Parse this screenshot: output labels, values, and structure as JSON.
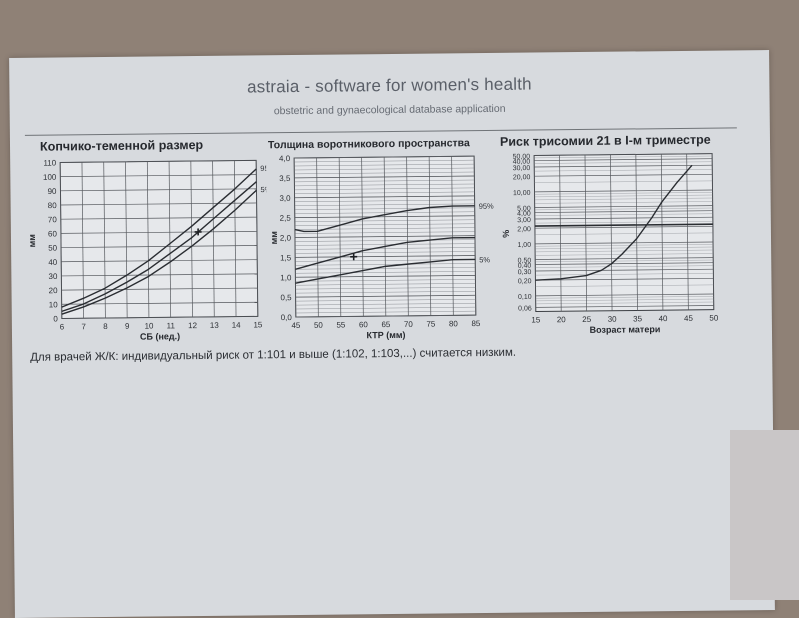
{
  "header": {
    "title": "astraia - software for women's health",
    "subtitle": "obstetric and gynaecological database application"
  },
  "footer_note": "Для врачей Ж/К: индивидуальный риск от 1:101 и выше (1:102, 1:103,...) считается низким.",
  "chart_data": [
    {
      "type": "line",
      "title": "Копчико-теменной размер",
      "xlabel": "СБ (нед.)",
      "ylabel": "мм",
      "xlim": [
        6,
        15
      ],
      "ylim": [
        0,
        110
      ],
      "x_ticks": [
        6,
        7,
        8,
        9,
        10,
        11,
        12,
        13,
        14,
        15
      ],
      "y_ticks": [
        0,
        10,
        20,
        30,
        40,
        50,
        60,
        70,
        80,
        90,
        100,
        110
      ],
      "grid": true,
      "series": [
        {
          "name": "95%",
          "x": [
            6,
            7,
            8,
            9,
            10,
            11,
            12,
            13,
            14,
            15
          ],
          "values": [
            8,
            14,
            21,
            30,
            40,
            52,
            64,
            77,
            90,
            104
          ]
        },
        {
          "name": "",
          "x": [
            6,
            7,
            8,
            9,
            10,
            11,
            12,
            13,
            14,
            15
          ],
          "values": [
            5,
            10,
            17,
            25,
            34,
            45,
            56,
            69,
            82,
            95
          ]
        },
        {
          "name": "5%",
          "x": [
            6,
            7,
            8,
            9,
            10,
            11,
            12,
            13,
            14,
            15
          ],
          "values": [
            3,
            8,
            14,
            21,
            29,
            39,
            50,
            62,
            75,
            89
          ]
        }
      ],
      "marker": {
        "x": 12.3,
        "y": 60
      }
    },
    {
      "type": "line",
      "title": "Толщина воротникового пространства",
      "xlabel": "КТР (мм)",
      "ylabel": "мм",
      "xlim": [
        45,
        85
      ],
      "ylim": [
        0,
        4
      ],
      "x_ticks": [
        45,
        50,
        55,
        60,
        65,
        70,
        75,
        80,
        85
      ],
      "y_ticks": [
        0.0,
        0.5,
        1.0,
        1.5,
        2.0,
        2.5,
        3.0,
        3.5,
        4.0
      ],
      "y_tick_labels": [
        "0,0",
        "0,5",
        "1,0",
        "1,5",
        "2,0",
        "2,5",
        "3,0",
        "3,5",
        "4,0"
      ],
      "grid": true,
      "series": [
        {
          "name": "95%",
          "x": [
            45,
            47,
            50,
            55,
            60,
            65,
            70,
            75,
            80,
            85
          ],
          "values": [
            2.2,
            2.15,
            2.15,
            2.3,
            2.45,
            2.55,
            2.65,
            2.72,
            2.75,
            2.75
          ]
        },
        {
          "name": "",
          "x": [
            45,
            50,
            55,
            60,
            65,
            70,
            75,
            80,
            85
          ],
          "values": [
            1.2,
            1.35,
            1.5,
            1.65,
            1.75,
            1.85,
            1.9,
            1.95,
            1.95
          ]
        },
        {
          "name": "5%",
          "x": [
            45,
            50,
            55,
            60,
            65,
            70,
            75,
            80,
            85
          ],
          "values": [
            0.85,
            0.95,
            1.05,
            1.15,
            1.25,
            1.3,
            1.35,
            1.4,
            1.4
          ]
        }
      ],
      "marker": {
        "x": 58,
        "y": 1.5
      }
    },
    {
      "type": "line",
      "title": "Риск трисомии 21 в I-м триместре",
      "xlabel": "Возраст матери",
      "ylabel": "%",
      "xlim": [
        15,
        50
      ],
      "ylim": [
        0.05,
        50
      ],
      "log_y": true,
      "x_ticks": [
        15,
        20,
        25,
        30,
        35,
        40,
        45,
        50
      ],
      "y_ticks": [
        0.06,
        0.1,
        0.2,
        0.3,
        0.4,
        0.5,
        1,
        2,
        3,
        4,
        5,
        10,
        20,
        30,
        40,
        50
      ],
      "y_tick_labels": [
        "0,06",
        "0,10",
        "0,20",
        "0,30",
        "0,40",
        "0,50",
        "1,00",
        "2,00",
        "3,00",
        "4,00",
        "5,00",
        "10,00",
        "20,00",
        "30,00",
        "40,00",
        "50,00"
      ],
      "grid": true,
      "series": [
        {
          "name": "",
          "x": [
            15,
            20,
            25,
            28,
            30,
            32,
            35,
            38,
            40,
            43,
            46
          ],
          "values": [
            0.2,
            0.21,
            0.24,
            0.3,
            0.4,
            0.6,
            1.2,
            3.0,
            6.0,
            14,
            30
          ]
        }
      ],
      "threshold": 2.2
    }
  ]
}
